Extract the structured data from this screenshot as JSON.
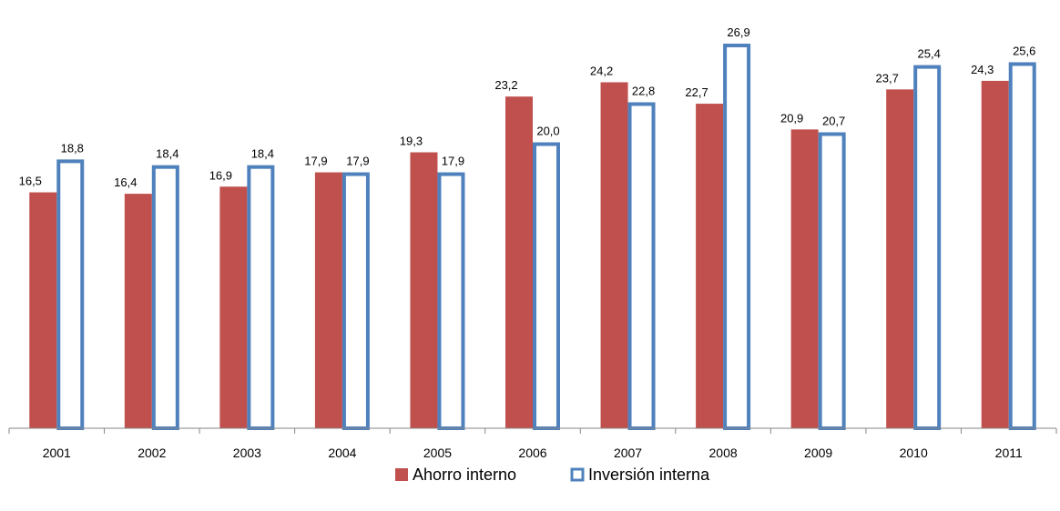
{
  "chart_data": {
    "type": "bar",
    "title": "",
    "xlabel": "",
    "ylabel": "",
    "categories": [
      "2001",
      "2002",
      "2003",
      "2004",
      "2005",
      "2006",
      "2007",
      "2008",
      "2009",
      "2010",
      "2011"
    ],
    "series": [
      {
        "name": "Ahorro interno",
        "values": [
          16.5,
          16.4,
          16.9,
          17.9,
          19.3,
          23.2,
          24.2,
          22.7,
          20.9,
          23.7,
          24.3
        ],
        "labels": [
          "16,5",
          "16,4",
          "16,9",
          "17,9",
          "19,3",
          "23,2",
          "24,2",
          "22,7",
          "20,9",
          "23,7",
          "24,3"
        ],
        "fill": "#c0504d",
        "stroke": "none"
      },
      {
        "name": "Inversión interna",
        "values": [
          18.8,
          18.4,
          18.4,
          17.9,
          17.9,
          20.0,
          22.8,
          26.9,
          20.7,
          25.4,
          25.6
        ],
        "labels": [
          "18,8",
          "18,4",
          "18,4",
          "17,9",
          "17,9",
          "20,0",
          "22,8",
          "26,9",
          "20,7",
          "25,4",
          "25,6"
        ],
        "fill": "#ffffff",
        "stroke": "#4f81bd"
      }
    ],
    "ylim": [
      0,
      29
    ],
    "grid": false,
    "legend_position": "bottom-center"
  }
}
